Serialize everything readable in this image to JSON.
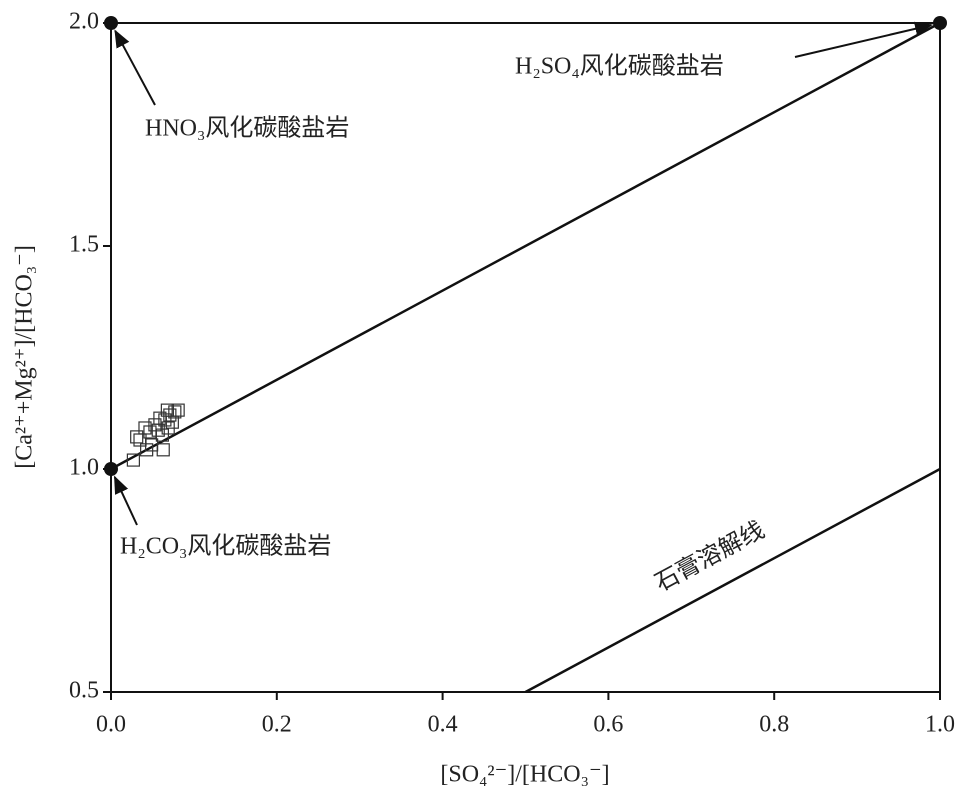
{
  "chart_data": {
    "type": "scatter",
    "x_label": "[SO₄²⁻]/[HCO₃⁻]",
    "y_label": "[Ca²⁺+Mg²⁺]/[HCO₃⁻]",
    "xlim": [
      0,
      1
    ],
    "ylim": [
      0.5,
      2
    ],
    "xticks": [
      {
        "value": 0,
        "label": "0.0"
      },
      {
        "value": 0.2,
        "label": "0.2"
      },
      {
        "value": 0.4,
        "label": "0.4"
      },
      {
        "value": 0.6,
        "label": "0.6"
      },
      {
        "value": 0.8,
        "label": "0.8"
      },
      {
        "value": 1,
        "label": "1.0"
      }
    ],
    "yticks": [
      {
        "value": 0.5,
        "label": "0.5"
      },
      {
        "value": 1,
        "label": "1.0"
      },
      {
        "value": 1.5,
        "label": "1.5"
      },
      {
        "value": 2,
        "label": "2.0"
      }
    ],
    "x": [
      0.027,
      0.031,
      0.035,
      0.041,
      0.043,
      0.047,
      0.049,
      0.053,
      0.057,
      0.059,
      0.062,
      0.063,
      0.065,
      0.068,
      0.069,
      0.071,
      0.074,
      0.077,
      0.081
    ],
    "y": [
      1.02,
      1.072,
      1.065,
      1.092,
      1.043,
      1.083,
      1.054,
      1.099,
      1.087,
      1.114,
      1.076,
      1.043,
      1.11,
      1.132,
      1.092,
      1.121,
      1.105,
      1.128,
      1.132
    ],
    "marker_color": "#333333",
    "lines": [
      {
        "x": [
          0,
          1
        ],
        "y": [
          1,
          2
        ]
      },
      {
        "x": [
          0.5,
          1
        ],
        "y": [
          0.5,
          1
        ],
        "label": "石膏溶解线"
      }
    ],
    "end_members": [
      {
        "label": "HNO₃风化碳酸盐岩",
        "x": 0,
        "y": 2
      },
      {
        "label": "H₂SO₄风化碳酸盐岩",
        "x": 1,
        "y": 2
      },
      {
        "label": "H₂CO₃风化碳酸盐岩",
        "x": 0,
        "y": 1
      }
    ]
  }
}
